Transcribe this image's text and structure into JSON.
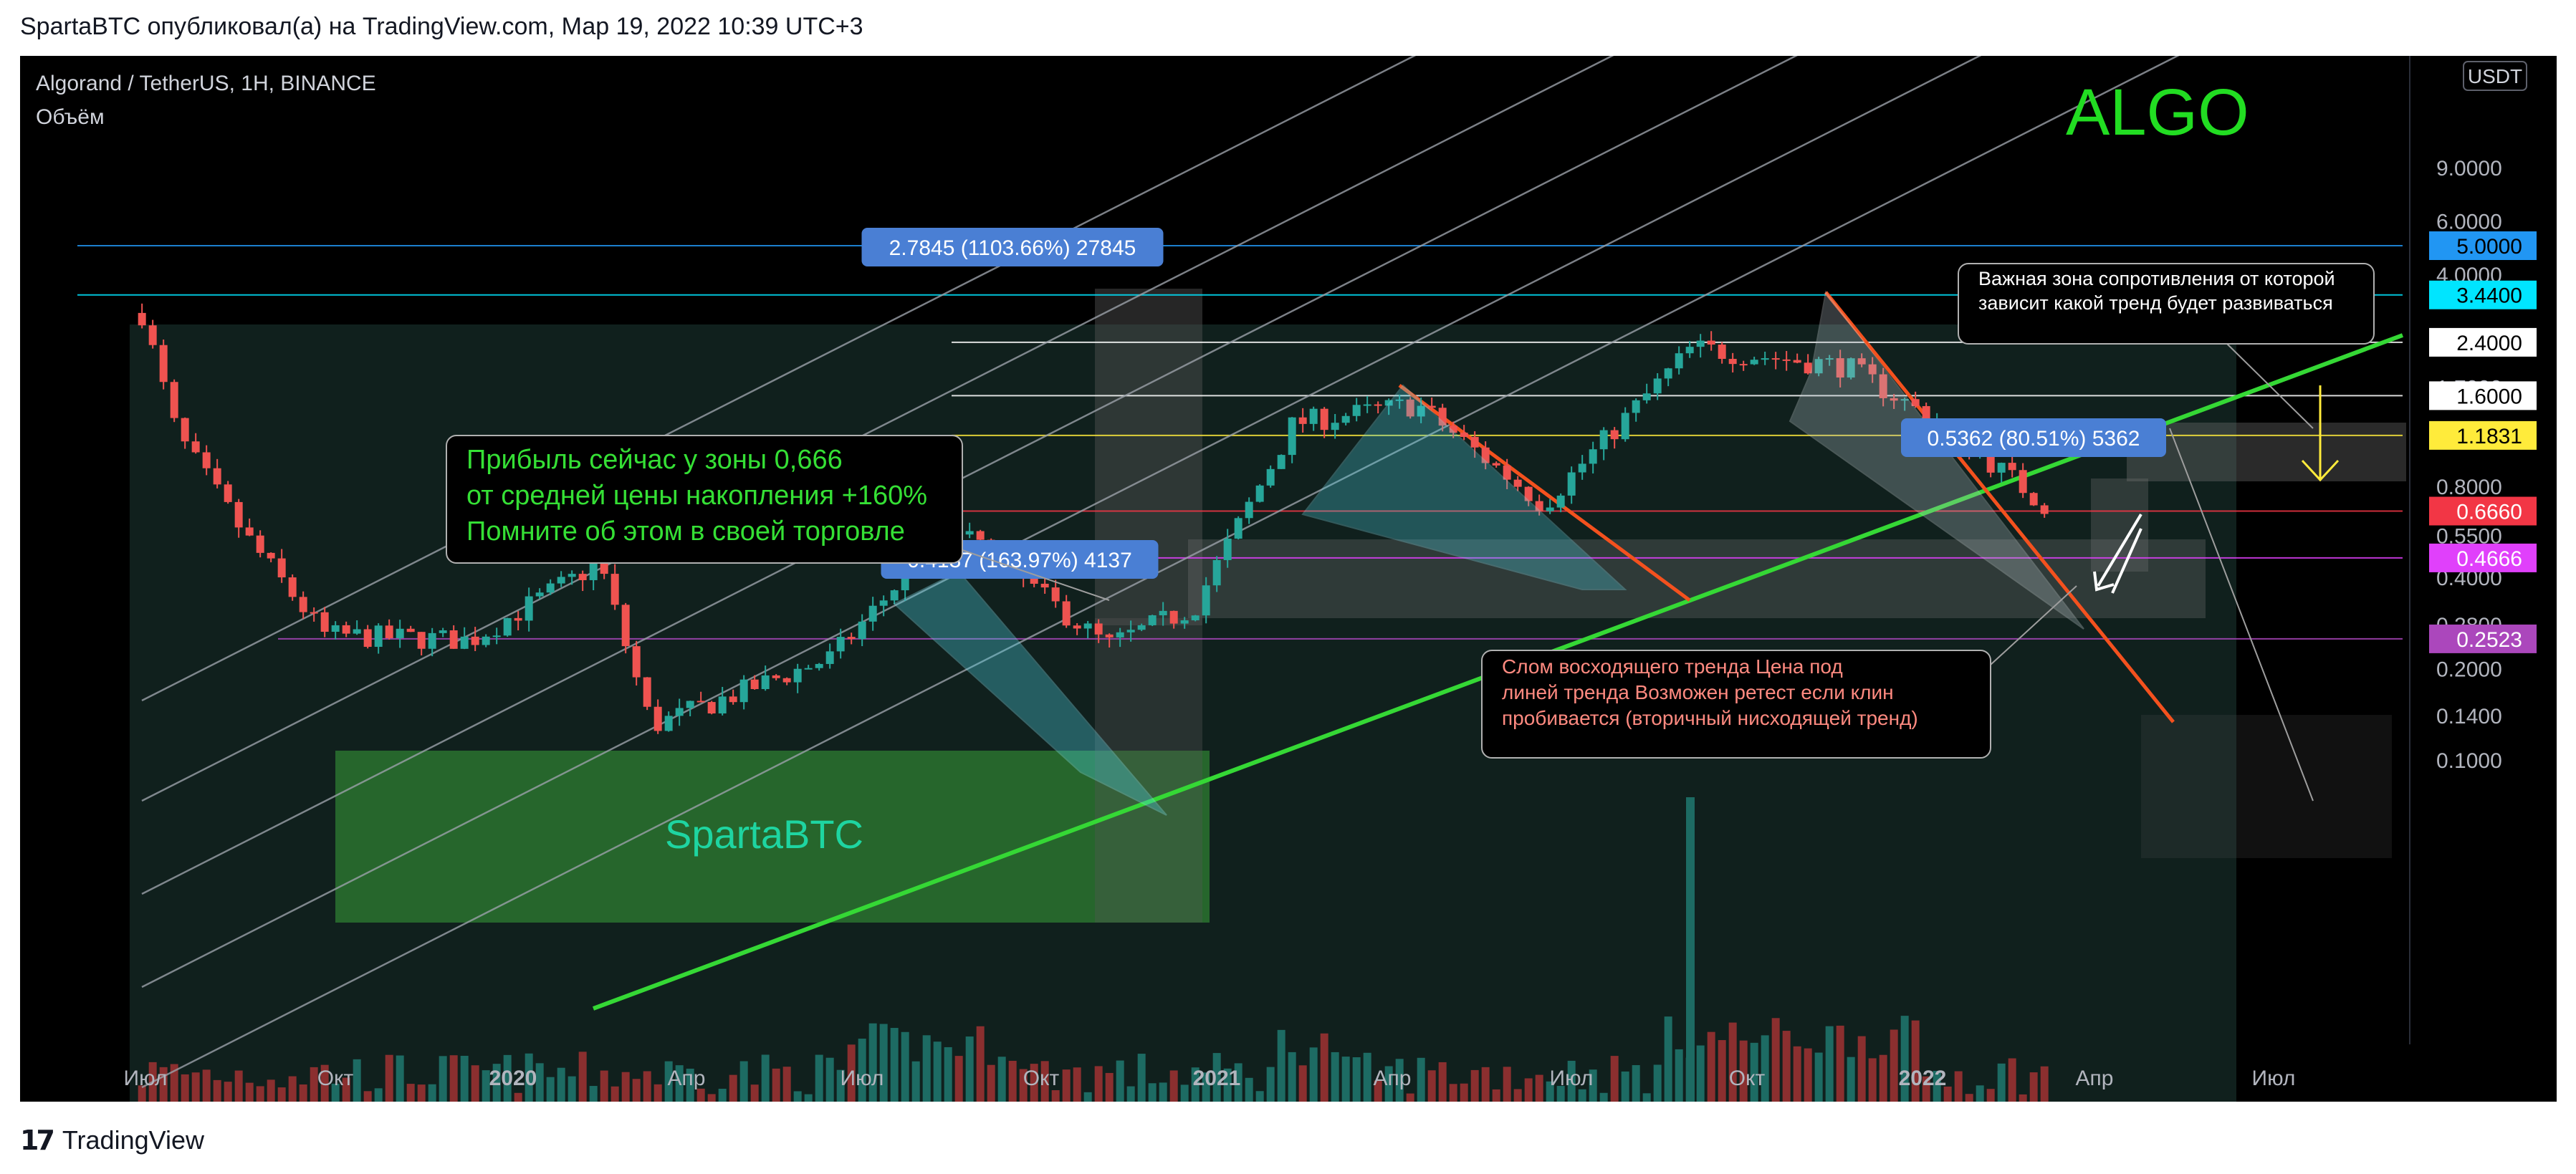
{
  "header": {
    "publication": "SpartaBTC опубликовал(а) на TradingView.com, Мар 19, 2022 10:39 UTC+3"
  },
  "chart_info": {
    "symbol": "Algorand / TetherUS, 1H, BINANCE",
    "indicator": "Объём",
    "currency": "USDT",
    "watermark_ticker": "ALGO",
    "watermark_author": "SpartaBTC"
  },
  "footer": {
    "brand": "TradingView",
    "logo": "tradingview-logo"
  },
  "colors": {
    "up": "#26a69a",
    "down": "#ef5350",
    "trendline": "#35d835",
    "channel": "#9ba1a9",
    "fib_blue": "#2196f3",
    "fib_cyan": "#00e5ff",
    "fib_yellow": "#ffeb3b",
    "fib_red": "#f23645",
    "fib_magenta": "#e040fb",
    "fib_purple": "#ab47bc"
  },
  "chart_data": {
    "type": "candlestick",
    "x_axis": {
      "ticks": [
        "Июл",
        "Окт",
        "2020",
        "Апр",
        "Июл",
        "Окт",
        "2021",
        "Апр",
        "Июл",
        "Окт",
        "2022",
        "Апр",
        "Июл"
      ]
    },
    "y_axis": {
      "scale": "log",
      "ticks": [
        "9.0000",
        "6.0000",
        "4.0000",
        "1.7000",
        "0.8000",
        "0.5500",
        "0.4000",
        "0.2800",
        "0.2000",
        "0.1400",
        "0.1000"
      ]
    },
    "levels": [
      {
        "label": "5.0000",
        "value": 5.0,
        "color": "#2196f3",
        "text_color": "#000000"
      },
      {
        "label": "3.4400",
        "value": 3.44,
        "color": "#00e5ff",
        "text_color": "#000000"
      },
      {
        "label": "2.4000",
        "value": 2.4,
        "color": "#ffffff",
        "text_color": "#000000"
      },
      {
        "label": "1.6000",
        "value": 1.6,
        "color": "#ffffff",
        "text_color": "#000000"
      },
      {
        "label": "1.1831",
        "value": 1.1831,
        "color": "#ffeb3b",
        "text_color": "#000000"
      },
      {
        "label": "0.6660",
        "value": 0.666,
        "color": "#f23645",
        "text_color": "#ffffff"
      },
      {
        "label": "0.4666",
        "value": 0.4666,
        "color": "#e040fb",
        "text_color": "#ffffff"
      },
      {
        "label": "0.2523",
        "value": 0.2523,
        "color": "#ab47bc",
        "text_color": "#ffffff"
      }
    ],
    "measurements": [
      {
        "label": "2.7845 (1103.66%) 27845"
      },
      {
        "label": "0.4137 (163.97%) 4137"
      },
      {
        "label": "0.5362 (80.51%) 5362"
      }
    ],
    "annotations": [
      {
        "lines": [
          "Прибыль сейчас у зоны 0,666",
          "от средней цены накопления +160%",
          "Помните об этом в своей торговле"
        ],
        "color": "#35e035"
      },
      {
        "lines": [
          "Важная зона сопротивления от которой",
          "зависит какой тренд будет развиваться"
        ],
        "color": "#ffffff"
      },
      {
        "lines": [
          "Слом восходящего тренда Цена под",
          "линей тренда Возможен ретест если клин",
          "пробивается (вторичный нисходящей тренд)"
        ],
        "color": "#ff8a80"
      }
    ],
    "approx_price_path": [
      {
        "date": "2019-06-22",
        "close": 3.0
      },
      {
        "date": "2019-07-10",
        "close": 1.2
      },
      {
        "date": "2019-08-15",
        "close": 0.55
      },
      {
        "date": "2019-09-25",
        "close": 0.26
      },
      {
        "date": "2019-12-10",
        "close": 0.25
      },
      {
        "date": "2020-02-15",
        "close": 0.45
      },
      {
        "date": "2020-03-13",
        "close": 0.13
      },
      {
        "date": "2020-06-15",
        "close": 0.22
      },
      {
        "date": "2020-08-15",
        "close": 0.6
      },
      {
        "date": "2020-11-05",
        "close": 0.24
      },
      {
        "date": "2020-12-20",
        "close": 0.32
      },
      {
        "date": "2021-02-10",
        "close": 1.3
      },
      {
        "date": "2021-04-15",
        "close": 1.5
      },
      {
        "date": "2021-06-20",
        "close": 0.7
      },
      {
        "date": "2021-09-05",
        "close": 2.3
      },
      {
        "date": "2021-11-25",
        "close": 2.0
      },
      {
        "date": "2022-01-20",
        "close": 1.2
      },
      {
        "date": "2022-03-10",
        "close": 0.68
      }
    ]
  }
}
